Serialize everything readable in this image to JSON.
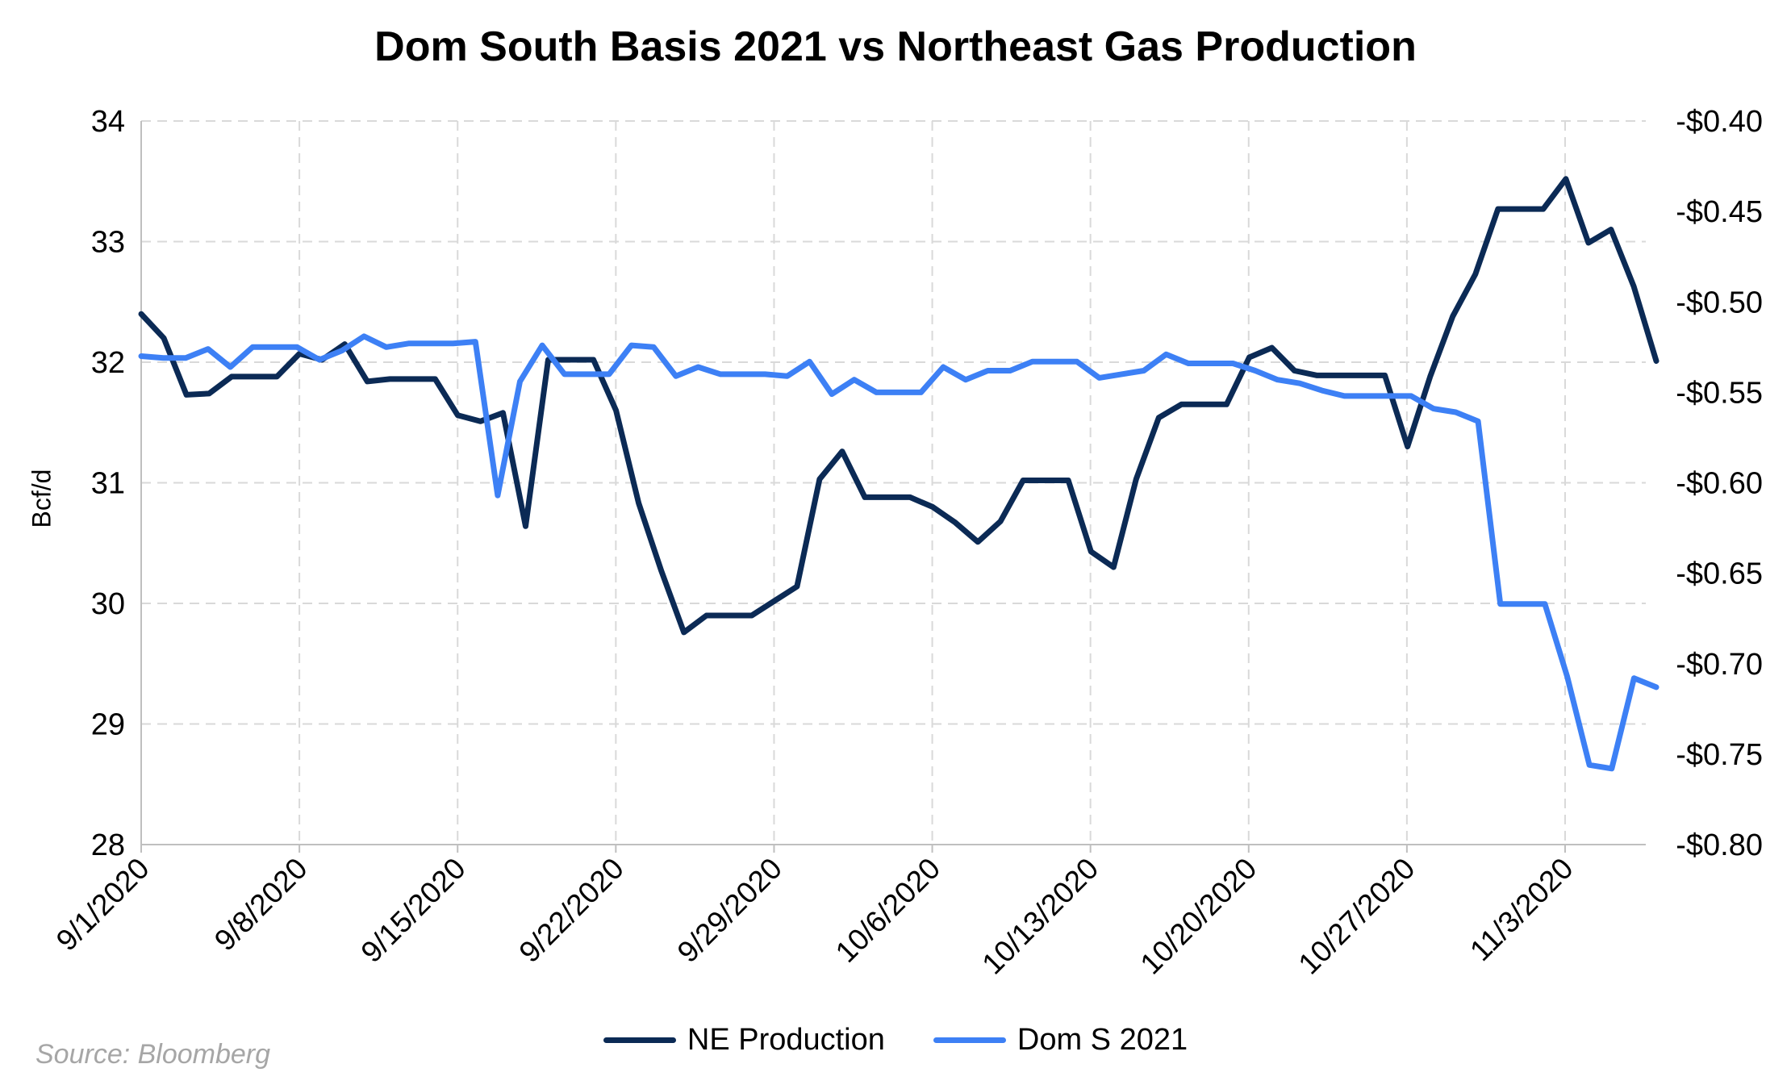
{
  "chart_data": {
    "type": "line",
    "title": "Dom South Basis 2021 vs Northeast Gas Production",
    "ylabel": "Bcf/d",
    "source": "Source: Bloomberg",
    "grid": true,
    "legend_position": "bottom",
    "ylim_left": [
      28,
      34
    ],
    "yticks_left": [
      "28",
      "29",
      "30",
      "31",
      "32",
      "33",
      "34"
    ],
    "ylim_right": [
      -0.8,
      -0.4
    ],
    "yticks_right": [
      "-$0.80",
      "-$0.75",
      "-$0.70",
      "-$0.65",
      "-$0.60",
      "-$0.55",
      "-$0.50",
      "-$0.45",
      "-$0.40"
    ],
    "x_dates": [
      "9/1/2020",
      "9/2/2020",
      "9/3/2020",
      "9/4/2020",
      "9/7/2020",
      "9/8/2020",
      "9/9/2020",
      "9/10/2020",
      "9/11/2020",
      "9/14/2020",
      "9/15/2020",
      "9/16/2020",
      "9/17/2020",
      "9/18/2020",
      "9/21/2020",
      "9/22/2020",
      "9/23/2020",
      "9/24/2020",
      "9/25/2020",
      "9/28/2020",
      "9/29/2020",
      "9/30/2020",
      "10/1/2020",
      "10/2/2020",
      "10/5/2020",
      "10/6/2020",
      "10/7/2020",
      "10/8/2020",
      "10/9/2020",
      "10/12/2020",
      "10/13/2020",
      "10/14/2020",
      "10/15/2020",
      "10/16/2020",
      "10/19/2020",
      "10/20/2020",
      "10/21/2020",
      "10/22/2020",
      "10/23/2020",
      "10/26/2020",
      "10/27/2020",
      "10/28/2020",
      "10/29/2020",
      "10/30/2020",
      "11/2/2020",
      "11/3/2020",
      "11/4/2020",
      "11/5/2020",
      "11/6/2020"
    ],
    "x_tick_labels": [
      "9/1/2020",
      "9/8/2020",
      "9/15/2020",
      "9/22/2020",
      "9/29/2020",
      "10/6/2020",
      "10/13/2020",
      "10/20/2020",
      "10/27/2020",
      "11/3/2020"
    ],
    "series": [
      {
        "name": "NE Production",
        "axis": "left",
        "color": "#0b2a55",
        "points": [
          [
            "9/1/2020",
            32.4
          ],
          [
            "9/1/2020",
            32.2
          ],
          [
            "9/2/2020",
            31.73
          ],
          [
            "9/3/2020",
            31.74
          ],
          [
            "9/4/2020",
            31.88
          ],
          [
            "9/5/2020",
            31.88
          ],
          [
            "9/6/2020",
            31.88
          ],
          [
            "9/7/2020",
            32.07
          ],
          [
            "9/8/2020",
            32.02
          ],
          [
            "9/9/2020",
            32.15
          ],
          [
            "9/10/2020",
            31.84
          ],
          [
            "9/11/2020",
            31.86
          ],
          [
            "9/12/2020",
            31.86
          ],
          [
            "9/13/2020",
            31.86
          ],
          [
            "9/14/2020",
            31.56
          ],
          [
            "9/15/2020",
            31.51
          ],
          [
            "9/16/2020",
            31.58
          ],
          [
            "9/17/2020",
            30.64
          ],
          [
            "9/18/2020",
            32.02
          ],
          [
            "9/19/2020",
            32.02
          ],
          [
            "9/20/2020",
            32.02
          ],
          [
            "9/21/2020",
            31.6
          ],
          [
            "9/22/2020",
            30.83
          ],
          [
            "9/23/2020",
            30.27
          ],
          [
            "9/24/2020",
            29.76
          ],
          [
            "9/25/2020",
            29.9
          ],
          [
            "9/26/2020",
            29.9
          ],
          [
            "9/27/2020",
            29.9
          ],
          [
            "9/28/2020",
            30.02
          ],
          [
            "9/29/2020",
            30.14
          ],
          [
            "9/30/2020",
            31.03
          ],
          [
            "10/1/2020",
            31.26
          ],
          [
            "10/2/2020",
            30.88
          ],
          [
            "10/3/2020",
            30.88
          ],
          [
            "10/4/2020",
            30.88
          ],
          [
            "10/5/2020",
            30.8
          ],
          [
            "10/6/2020",
            30.67
          ],
          [
            "10/7/2020",
            30.51
          ],
          [
            "10/8/2020",
            30.68
          ],
          [
            "10/9/2020",
            31.02
          ],
          [
            "10/10/2020",
            31.02
          ],
          [
            "10/11/2020",
            31.02
          ],
          [
            "10/12/2020",
            30.43
          ],
          [
            "10/13/2020",
            30.3
          ],
          [
            "10/14/2020",
            31.03
          ],
          [
            "10/15/2020",
            31.54
          ],
          [
            "10/16/2020",
            31.65
          ],
          [
            "10/17/2020",
            31.65
          ],
          [
            "10/18/2020",
            31.65
          ],
          [
            "10/19/2020",
            32.04
          ],
          [
            "10/20/2020",
            32.12
          ],
          [
            "10/21/2020",
            31.93
          ],
          [
            "10/22/2020",
            31.89
          ],
          [
            "10/23/2020",
            31.89
          ],
          [
            "10/24/2020",
            31.89
          ],
          [
            "10/25/2020",
            31.89
          ],
          [
            "10/26/2020",
            31.3
          ],
          [
            "10/27/2020",
            31.88
          ],
          [
            "10/28/2020",
            32.38
          ],
          [
            "10/29/2020",
            32.73
          ],
          [
            "10/30/2020",
            33.27
          ],
          [
            "10/31/2020",
            33.27
          ],
          [
            "11/1/2020",
            33.27
          ],
          [
            "11/2/2020",
            33.52
          ],
          [
            "11/3/2020",
            32.99
          ],
          [
            "11/4/2020",
            33.1
          ],
          [
            "11/5/2020",
            32.63
          ],
          [
            "11/6/2020",
            32.01
          ]
        ]
      },
      {
        "name": "Dom S 2021",
        "axis": "right",
        "color": "#3d80f5",
        "points": [
          [
            "9/1/2020",
            -0.53
          ],
          [
            "9/1/2020",
            -0.531
          ],
          [
            "9/2/2020",
            -0.531
          ],
          [
            "9/3/2020",
            -0.526
          ],
          [
            "9/4/2020",
            -0.536
          ],
          [
            "9/5/2020",
            -0.525
          ],
          [
            "9/6/2020",
            -0.525
          ],
          [
            "9/7/2020",
            -0.525
          ],
          [
            "9/8/2020",
            -0.532
          ],
          [
            "9/9/2020",
            -0.527
          ],
          [
            "9/10/2020",
            -0.519
          ],
          [
            "9/11/2020",
            -0.525
          ],
          [
            "9/12/2020",
            -0.523
          ],
          [
            "9/13/2020",
            -0.523
          ],
          [
            "9/14/2020",
            -0.523
          ],
          [
            "9/15/2020",
            -0.522
          ],
          [
            "9/16/2020",
            -0.607
          ],
          [
            "9/17/2020",
            -0.544
          ],
          [
            "9/18/2020",
            -0.524
          ],
          [
            "9/19/2020",
            -0.54
          ],
          [
            "9/20/2020",
            -0.54
          ],
          [
            "9/21/2020",
            -0.54
          ],
          [
            "9/22/2020",
            -0.524
          ],
          [
            "9/23/2020",
            -0.525
          ],
          [
            "9/24/2020",
            -0.541
          ],
          [
            "9/25/2020",
            -0.536
          ],
          [
            "9/26/2020",
            -0.54
          ],
          [
            "9/27/2020",
            -0.54
          ],
          [
            "9/28/2020",
            -0.54
          ],
          [
            "9/29/2020",
            -0.541
          ],
          [
            "9/30/2020",
            -0.533
          ],
          [
            "10/1/2020",
            -0.551
          ],
          [
            "10/2/2020",
            -0.543
          ],
          [
            "10/3/2020",
            -0.55
          ],
          [
            "10/4/2020",
            -0.55
          ],
          [
            "10/5/2020",
            -0.55
          ],
          [
            "10/6/2020",
            -0.536
          ],
          [
            "10/7/2020",
            -0.543
          ],
          [
            "10/8/2020",
            -0.538
          ],
          [
            "10/9/2020",
            -0.538
          ],
          [
            "10/10/2020",
            -0.533
          ],
          [
            "10/11/2020",
            -0.533
          ],
          [
            "10/12/2020",
            -0.533
          ],
          [
            "10/13/2020",
            -0.542
          ],
          [
            "10/14/2020",
            -0.54
          ],
          [
            "10/15/2020",
            -0.538
          ],
          [
            "10/16/2020",
            -0.529
          ],
          [
            "10/17/2020",
            -0.534
          ],
          [
            "10/18/2020",
            -0.534
          ],
          [
            "10/19/2020",
            -0.534
          ],
          [
            "10/20/2020",
            -0.538
          ],
          [
            "10/21/2020",
            -0.543
          ],
          [
            "10/22/2020",
            -0.545
          ],
          [
            "10/23/2020",
            -0.549
          ],
          [
            "10/24/2020",
            -0.552
          ],
          [
            "10/25/2020",
            -0.552
          ],
          [
            "10/26/2020",
            -0.552
          ],
          [
            "10/27/2020",
            -0.552
          ],
          [
            "10/28/2020",
            -0.559
          ],
          [
            "10/29/2020",
            -0.561
          ],
          [
            "10/30/2020",
            -0.566
          ],
          [
            "10/31/2020",
            -0.667
          ],
          [
            "11/1/2020",
            -0.667
          ],
          [
            "11/2/2020",
            -0.667
          ],
          [
            "11/3/2020",
            -0.707
          ],
          [
            "11/4/2020",
            -0.756
          ],
          [
            "11/5/2020",
            -0.758
          ],
          [
            "11/6/2020",
            -0.708
          ],
          [
            "11/7/2020",
            -0.713
          ]
        ]
      }
    ]
  }
}
